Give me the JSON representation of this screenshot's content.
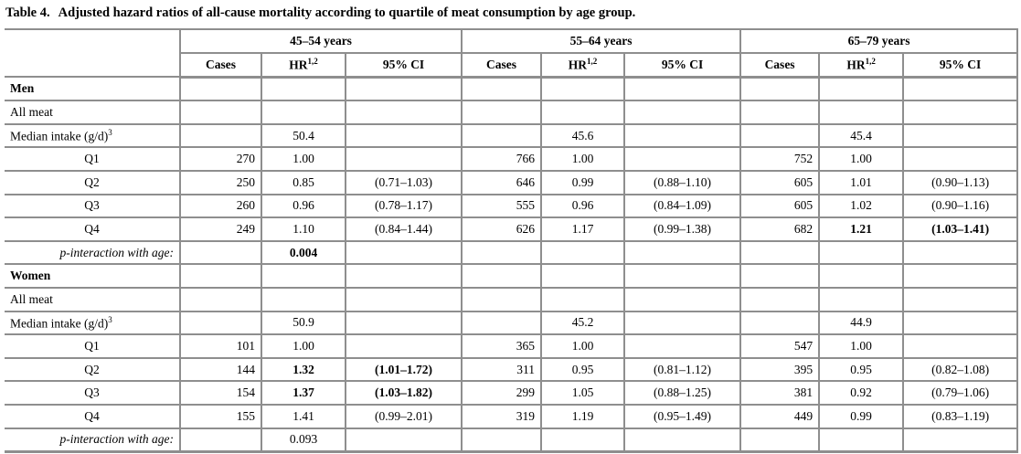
{
  "title": {
    "prefix": "Table 4.",
    "text": "Adjusted hazard ratios of all-cause mortality according to quartile of meat consumption by age group."
  },
  "table": {
    "border_color": "#8e8e8e",
    "age_groups": [
      "45–54 years",
      "55–64 years",
      "65–79 years"
    ],
    "col_headers": {
      "cases": "Cases",
      "hr": "HR",
      "hr_sup": "1,2",
      "ci": "95% CI"
    },
    "rows": [
      {
        "label": "Men",
        "label_bold": true,
        "label_align": "left",
        "groups": [
          {},
          {},
          {}
        ]
      },
      {
        "label": "All meat",
        "label_align": "left",
        "groups": [
          {},
          {},
          {}
        ]
      },
      {
        "label": "Median intake (g/d)",
        "label_sup": "3",
        "label_align": "left",
        "groups": [
          {
            "hr": "50.4"
          },
          {
            "hr": "45.6"
          },
          {
            "hr": "45.4"
          }
        ]
      },
      {
        "label": "Q1",
        "label_align": "center",
        "groups": [
          {
            "cases": "270",
            "hr": "1.00"
          },
          {
            "cases": "766",
            "hr": "1.00"
          },
          {
            "cases": "752",
            "hr": "1.00"
          }
        ]
      },
      {
        "label": "Q2",
        "label_align": "center",
        "groups": [
          {
            "cases": "250",
            "hr": "0.85",
            "ci": "(0.71–1.03)"
          },
          {
            "cases": "646",
            "hr": "0.99",
            "ci": "(0.88–1.10)"
          },
          {
            "cases": "605",
            "hr": "1.01",
            "ci": "(0.90–1.13)"
          }
        ]
      },
      {
        "label": "Q3",
        "label_align": "center",
        "groups": [
          {
            "cases": "260",
            "hr": "0.96",
            "ci": "(0.78–1.17)"
          },
          {
            "cases": "555",
            "hr": "0.96",
            "ci": "(0.84–1.09)"
          },
          {
            "cases": "605",
            "hr": "1.02",
            "ci": "(0.90–1.16)"
          }
        ]
      },
      {
        "label": "Q4",
        "label_align": "center",
        "groups": [
          {
            "cases": "249",
            "hr": "1.10",
            "ci": "(0.84–1.44)"
          },
          {
            "cases": "626",
            "hr": "1.17",
            "ci": "(0.99–1.38)"
          },
          {
            "cases": "682",
            "hr": "1.21",
            "hr_bold": true,
            "ci": "(1.03–1.41)",
            "ci_bold": true
          }
        ]
      },
      {
        "label": "p-interaction with age:",
        "label_italic": true,
        "label_align": "right",
        "groups": [
          {
            "hr": "0.004",
            "hr_bold": true
          },
          {},
          {}
        ]
      },
      {
        "label": "Women",
        "label_bold": true,
        "label_align": "left",
        "groups": [
          {},
          {},
          {}
        ]
      },
      {
        "label": "All meat",
        "label_align": "left",
        "groups": [
          {},
          {},
          {}
        ]
      },
      {
        "label": "Median intake (g/d)",
        "label_sup": "3",
        "label_align": "left",
        "groups": [
          {
            "hr": "50.9"
          },
          {
            "hr": "45.2"
          },
          {
            "hr": "44.9"
          }
        ]
      },
      {
        "label": "Q1",
        "label_align": "center",
        "groups": [
          {
            "cases": "101",
            "hr": "1.00"
          },
          {
            "cases": "365",
            "hr": "1.00"
          },
          {
            "cases": "547",
            "hr": "1.00"
          }
        ]
      },
      {
        "label": "Q2",
        "label_align": "center",
        "groups": [
          {
            "cases": "144",
            "hr": "1.32",
            "hr_bold": true,
            "ci": "(1.01–1.72)",
            "ci_bold": true
          },
          {
            "cases": "311",
            "hr": "0.95",
            "ci": "(0.81–1.12)"
          },
          {
            "cases": "395",
            "hr": "0.95",
            "ci": "(0.82–1.08)"
          }
        ]
      },
      {
        "label": "Q3",
        "label_align": "center",
        "groups": [
          {
            "cases": "154",
            "hr": "1.37",
            "hr_bold": true,
            "ci": "(1.03–1.82)",
            "ci_bold": true
          },
          {
            "cases": "299",
            "hr": "1.05",
            "ci": "(0.88–1.25)"
          },
          {
            "cases": "381",
            "hr": "0.92",
            "ci": "(0.79–1.06)"
          }
        ]
      },
      {
        "label": "Q4",
        "label_align": "center",
        "groups": [
          {
            "cases": "155",
            "hr": "1.41",
            "ci": "(0.99–2.01)"
          },
          {
            "cases": "319",
            "hr": "1.19",
            "ci": "(0.95–1.49)"
          },
          {
            "cases": "449",
            "hr": "0.99",
            "ci": "(0.83–1.19)"
          }
        ]
      },
      {
        "label": "p-interaction with age:",
        "label_italic": true,
        "label_align": "right",
        "groups": [
          {
            "hr": "0.093"
          },
          {},
          {}
        ]
      }
    ]
  }
}
